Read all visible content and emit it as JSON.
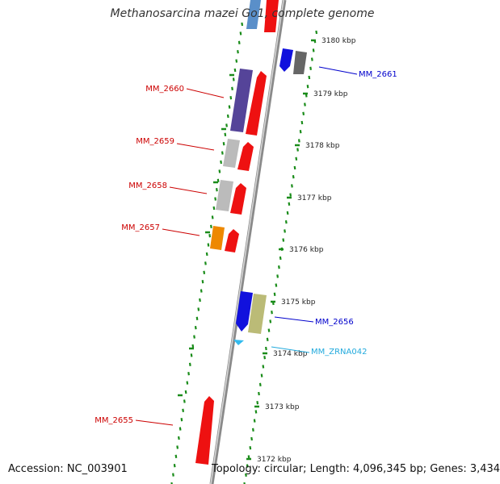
{
  "title": "Methanosarcina mazei Go1, complete genome",
  "footer": {
    "accession": "Accession: NC_003901",
    "summary": "Topology: circular; Length: 4,096,345 bp; Genes: 3,434"
  },
  "ticks": [
    "3180 kbp",
    "3179 kbp",
    "3178 kbp",
    "3177 kbp",
    "3176 kbp",
    "3175 kbp",
    "3174 kbp",
    "3173 kbp",
    "3172 kbp"
  ],
  "gene_labels": [
    {
      "text": "MM_2661",
      "color": "#0000cc"
    },
    {
      "text": "MM_2660",
      "color": "#cc0000"
    },
    {
      "text": "MM_2659",
      "color": "#cc0000"
    },
    {
      "text": "MM_2658",
      "color": "#cc0000"
    },
    {
      "text": "MM_2657",
      "color": "#cc0000"
    },
    {
      "text": "MM_2656",
      "color": "#0000cc"
    },
    {
      "text": "MM_ZRNA042",
      "color": "#22aadd"
    },
    {
      "text": "MM_2655",
      "color": "#cc0000"
    }
  ],
  "colors": {
    "backbone": "#888888",
    "tick_marks": "#1a8c1a",
    "cds_forward": "#ee1111",
    "reverse_blue": "#1111dd",
    "purple": "#554499",
    "gray": "#bbbbbb",
    "orange": "#ee8800",
    "olive": "#bbbb77",
    "dark_gray": "#666666",
    "rna": "#33bbee"
  }
}
